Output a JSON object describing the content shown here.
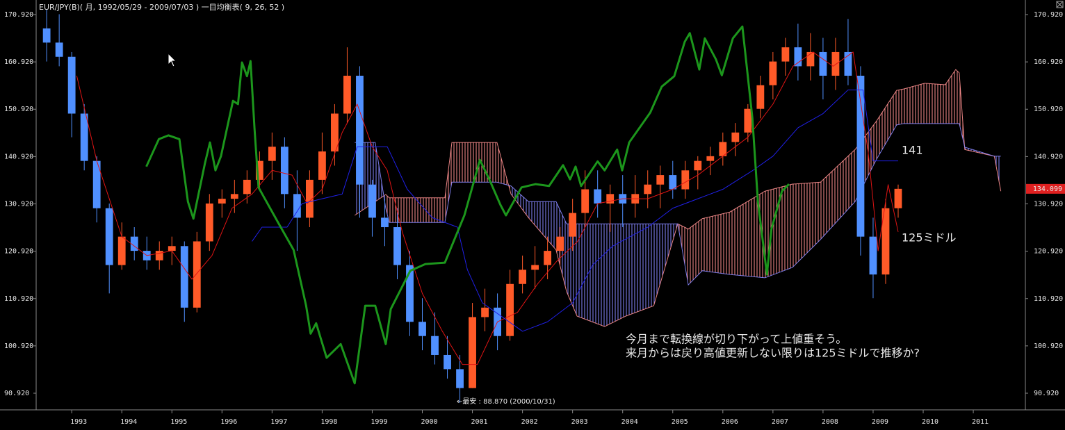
{
  "chart_data": {
    "type": "candlestick",
    "title": "EUR/JPY(B)( 月, 1992/05/29 - 2009/07/03 )   一目均衡表( 9, 26, 52 )",
    "x": [
      1992.5,
      1992.75,
      1993.0,
      1993.25,
      1993.5,
      1993.75,
      1994.0,
      1994.25,
      1994.5,
      1994.75,
      1995.0,
      1995.25,
      1995.5,
      1995.75,
      1996.0,
      1996.25,
      1996.5,
      1996.75,
      1997.0,
      1997.25,
      1997.5,
      1997.75,
      1998.0,
      1998.25,
      1998.5,
      1998.75,
      1999.0,
      1999.25,
      1999.5,
      1999.75,
      2000.0,
      2000.25,
      2000.5,
      2000.75,
      2001.0,
      2001.25,
      2001.5,
      2001.75,
      2002.0,
      2002.25,
      2002.5,
      2002.75,
      2003.0,
      2003.25,
      2003.5,
      2003.75,
      2004.0,
      2004.25,
      2004.5,
      2004.75,
      2005.0,
      2005.25,
      2005.5,
      2005.75,
      2006.0,
      2006.25,
      2006.5,
      2006.75,
      2007.0,
      2007.25,
      2007.5,
      2007.75,
      2008.0,
      2008.25,
      2008.5,
      2008.75,
      2009.0,
      2009.25,
      2009.5
    ],
    "open": [
      168,
      165,
      162,
      150,
      140,
      130,
      118,
      124,
      121,
      119,
      121,
      122,
      109,
      123,
      131,
      132,
      133,
      136,
      140,
      143,
      133,
      128,
      136,
      142,
      150,
      158,
      135,
      128,
      126,
      118,
      106,
      103,
      99,
      96,
      92,
      107,
      109,
      103,
      114,
      117,
      118,
      121,
      124,
      129,
      134,
      131,
      133,
      131,
      133,
      135,
      137,
      134,
      138,
      140,
      141,
      144,
      146,
      151,
      156,
      161,
      164,
      160,
      163,
      158,
      163,
      158,
      124,
      116,
      130
    ],
    "high": [
      172,
      171,
      163,
      152,
      141,
      131,
      127,
      126,
      124,
      123,
      124,
      123,
      125,
      133,
      134,
      136,
      138,
      142,
      146,
      145,
      138,
      138,
      146,
      152,
      164,
      160,
      136,
      132,
      130,
      121,
      111,
      108,
      103,
      99,
      110,
      113,
      112,
      117,
      120,
      122,
      124,
      126,
      132,
      138,
      138,
      135,
      137,
      137,
      138,
      139,
      140,
      140,
      141,
      143,
      146,
      148,
      152,
      158,
      163,
      166,
      169,
      167,
      166,
      166,
      170,
      160,
      128,
      132,
      135
    ],
    "low": [
      161,
      160,
      145,
      138,
      127,
      112,
      117,
      119,
      117,
      117,
      118,
      106,
      108,
      121,
      128,
      129,
      131,
      134,
      136,
      130,
      121,
      126,
      133,
      139,
      148,
      128,
      124,
      122,
      115,
      103,
      100,
      97,
      94,
      88.87,
      92,
      104,
      100,
      102,
      112,
      113,
      115,
      118,
      121,
      126,
      128,
      125,
      126,
      128,
      130,
      130,
      132,
      132,
      134,
      137,
      139,
      141,
      144,
      149,
      153,
      158,
      157,
      157,
      153,
      155,
      156,
      120,
      111,
      114,
      128
    ],
    "close": [
      165,
      162,
      150,
      140,
      130,
      118,
      124,
      121,
      119,
      121,
      122,
      109,
      123,
      131,
      132,
      133,
      136,
      140,
      143,
      133,
      128,
      136,
      142,
      150,
      158,
      135,
      128,
      126,
      118,
      106,
      103,
      99,
      96,
      92,
      107,
      109,
      103,
      114,
      117,
      118,
      121,
      124,
      129,
      134,
      131,
      133,
      131,
      133,
      135,
      137,
      134,
      138,
      140,
      141,
      144,
      146,
      151,
      156,
      161,
      164,
      160,
      163,
      158,
      163,
      158,
      124,
      116,
      130,
      134.099
    ],
    "up_color": "#ff5a28",
    "down_color": "#5090ff",
    "lines": [
      {
        "color": "#e01414",
        "width": 1,
        "x": [
          1993.1,
          1993.5,
          1994.0,
          1994.5,
          1995.0,
          1995.4,
          1995.8,
          1996.2,
          1996.6,
          1997.0,
          1997.4,
          1997.7,
          1998.0,
          1998.4,
          1998.7,
          1999.0,
          1999.3,
          1999.6,
          2000.0,
          2000.4,
          2000.8,
          2001.1,
          2001.5,
          2001.9,
          2002.3,
          2002.7,
          2003.1,
          2003.5,
          2004.0,
          2004.5,
          2005.0,
          2005.5,
          2006.0,
          2006.5,
          2007.0,
          2007.4,
          2007.8,
          2008.2,
          2008.6,
          2008.9,
          2009.1,
          2009.3,
          2009.5
        ],
        "values": [
          158,
          140,
          124,
          120,
          121,
          115,
          120,
          130,
          133,
          138,
          137,
          131,
          134,
          146,
          152,
          143,
          138,
          125,
          112,
          104,
          97,
          97,
          106,
          108,
          114,
          119,
          123,
          131,
          132,
          132,
          134,
          137,
          141,
          145,
          152,
          160,
          163,
          160,
          163,
          142,
          121,
          135,
          125
        ]
      },
      {
        "color": "#2020e8",
        "width": 1,
        "x": [
          1996.6,
          1996.8,
          1997.3,
          1997.6,
          1998.0,
          1998.4,
          1998.7,
          1999.3,
          1999.7,
          2000.2,
          2000.7,
          2000.9,
          2001.2,
          2001.6,
          2002.0,
          2002.5,
          2003.0,
          2003.4,
          2003.8,
          2004.5,
          2005.0,
          2005.5,
          2006.0,
          2006.6,
          2007.0,
          2007.5,
          2008.0,
          2008.5,
          2008.8,
          2009.0,
          2009.5
        ],
        "values": [
          123,
          126,
          126,
          131,
          132,
          133,
          143,
          143,
          134,
          128,
          126,
          117,
          110,
          107,
          104,
          106,
          110,
          118,
          122,
          126,
          130,
          132,
          134,
          138,
          141,
          147,
          150,
          155,
          155,
          140,
          140
        ]
      },
      {
        "color": "#1c961c",
        "width": 3,
        "x": [
          1994.49,
          1994.74,
          1994.93,
          1995.15,
          1995.32,
          1995.43,
          1995.66,
          1995.76,
          1995.87,
          1995.98,
          1996.22,
          1996.32,
          1996.4,
          1996.5,
          1996.57,
          1996.65,
          1996.73,
          1997.12,
          1997.43,
          1997.68,
          1997.77,
          1997.88,
          1998.09,
          1998.37,
          1998.65,
          1998.86,
          1999.06,
          1999.27,
          1999.37,
          1999.76,
          2000.06,
          2000.45,
          2000.84,
          2001.15,
          2001.35,
          2001.56,
          2001.67,
          2001.98,
          2002.26,
          2002.53,
          2002.81,
          2002.95,
          2003.06,
          2003.17,
          2003.5,
          2003.64,
          2003.89,
          2003.99,
          2004.13,
          2004.55,
          2004.78,
          2005.03,
          2005.24,
          2005.34,
          2005.53,
          2005.64,
          2005.86,
          2005.98,
          2006.2,
          2006.39,
          2006.59,
          2006.7,
          2006.88,
          2006.97,
          2007.18,
          2007.32
        ],
        "values": [
          138.8,
          144.6,
          145.4,
          144.6,
          131.4,
          127.8,
          139.5,
          143.9,
          138.0,
          141.0,
          152.7,
          152.0,
          160.8,
          157.9,
          161.1,
          146.8,
          134.4,
          127.0,
          121.2,
          109.4,
          103.5,
          105.7,
          98.4,
          101.3,
          93.0,
          109.4,
          109.4,
          101.3,
          108.7,
          116.8,
          118.2,
          118.5,
          128.5,
          140.2,
          135.8,
          130.7,
          128.5,
          134.4,
          135.1,
          134.7,
          139.1,
          136.1,
          138.8,
          134.7,
          139.9,
          138.0,
          142.4,
          138.0,
          143.9,
          150.2,
          155.7,
          157.9,
          165.2,
          167.0,
          159.3,
          165.9,
          161.5,
          158.1,
          165.9,
          168.4,
          149.0,
          131.4,
          116.0,
          125.6,
          133.6,
          135.1
        ]
      }
    ],
    "cloud": {
      "x": [
        1998.65,
        1999.06,
        1999.27,
        1999.34,
        1999.9,
        2000.45,
        2000.59,
        2001.49,
        2001.77,
        2002.12,
        2002.67,
        2002.88,
        2003.09,
        2003.64,
        2004.06,
        2004.62,
        2005.1,
        2005.31,
        2005.59,
        2006.14,
        2006.84,
        2007.39,
        2007.95,
        2008.64,
        2009.06,
        2009.47,
        2009.61,
        2010.03,
        2010.44,
        2010.65,
        2010.72,
        2010.83,
        2011.42,
        2011.55
      ],
      "span_a": [
        128.5,
        131.4,
        132.9,
        132.2,
        132.2,
        132.2,
        143.9,
        143.9,
        133.0,
        128.0,
        121.2,
        112.4,
        107.2,
        105.0,
        107.2,
        109.4,
        126.7,
        125.6,
        127.8,
        129.2,
        133.6,
        135.1,
        135.5,
        142.4,
        148.3,
        154.9,
        155.2,
        156.4,
        156.1,
        159.3,
        158.6,
        142.4,
        141.0,
        133.6
      ],
      "span_b": [
        143.9,
        143.9,
        130.0,
        127.0,
        127.0,
        127.0,
        135.5,
        135.5,
        134.7,
        131.4,
        131.4,
        126.7,
        126.7,
        126.7,
        126.7,
        126.7,
        126.7,
        113.8,
        116.8,
        116.0,
        115.3,
        117.5,
        123.4,
        131.4,
        140.2,
        147.6,
        147.9,
        147.9,
        147.9,
        147.9,
        147.9,
        142.9,
        141.0,
        141.0
      ],
      "bull_color": "#ff9090",
      "bear_color": "#8888ff"
    },
    "xlim": [
      1992.29,
      2012.04
    ],
    "ylim": [
      87.4,
      174.0
    ],
    "xticks": [
      1993,
      1994,
      1995,
      1996,
      1997,
      1998,
      1999,
      2000,
      2001,
      2002,
      2003,
      2004,
      2005,
      2006,
      2007,
      2008,
      2009,
      2010,
      2011
    ],
    "yticks": [
      {
        "value": 170.92,
        "label": "170.920"
      },
      {
        "value": 160.92,
        "label": "160.920"
      },
      {
        "value": 150.92,
        "label": "150.920"
      },
      {
        "value": 140.92,
        "label": "140.920"
      },
      {
        "value": 130.92,
        "label": "130.920"
      },
      {
        "value": 120.92,
        "label": "120.920"
      },
      {
        "value": 110.92,
        "label": "110.920"
      },
      {
        "value": 100.92,
        "label": "100.920"
      },
      {
        "value": 90.92,
        "label": "90.920"
      }
    ],
    "last_price": 134.099,
    "last_price_color": "#e02020",
    "annotations": [
      "141",
      "125ミドル",
      "今月まで転換線が切り下がって上値重そう。",
      "来月からは戻り高値更新しない限りは125ミドルで推移か?",
      "←最安 : 88.870 (2000/10/31)"
    ]
  }
}
